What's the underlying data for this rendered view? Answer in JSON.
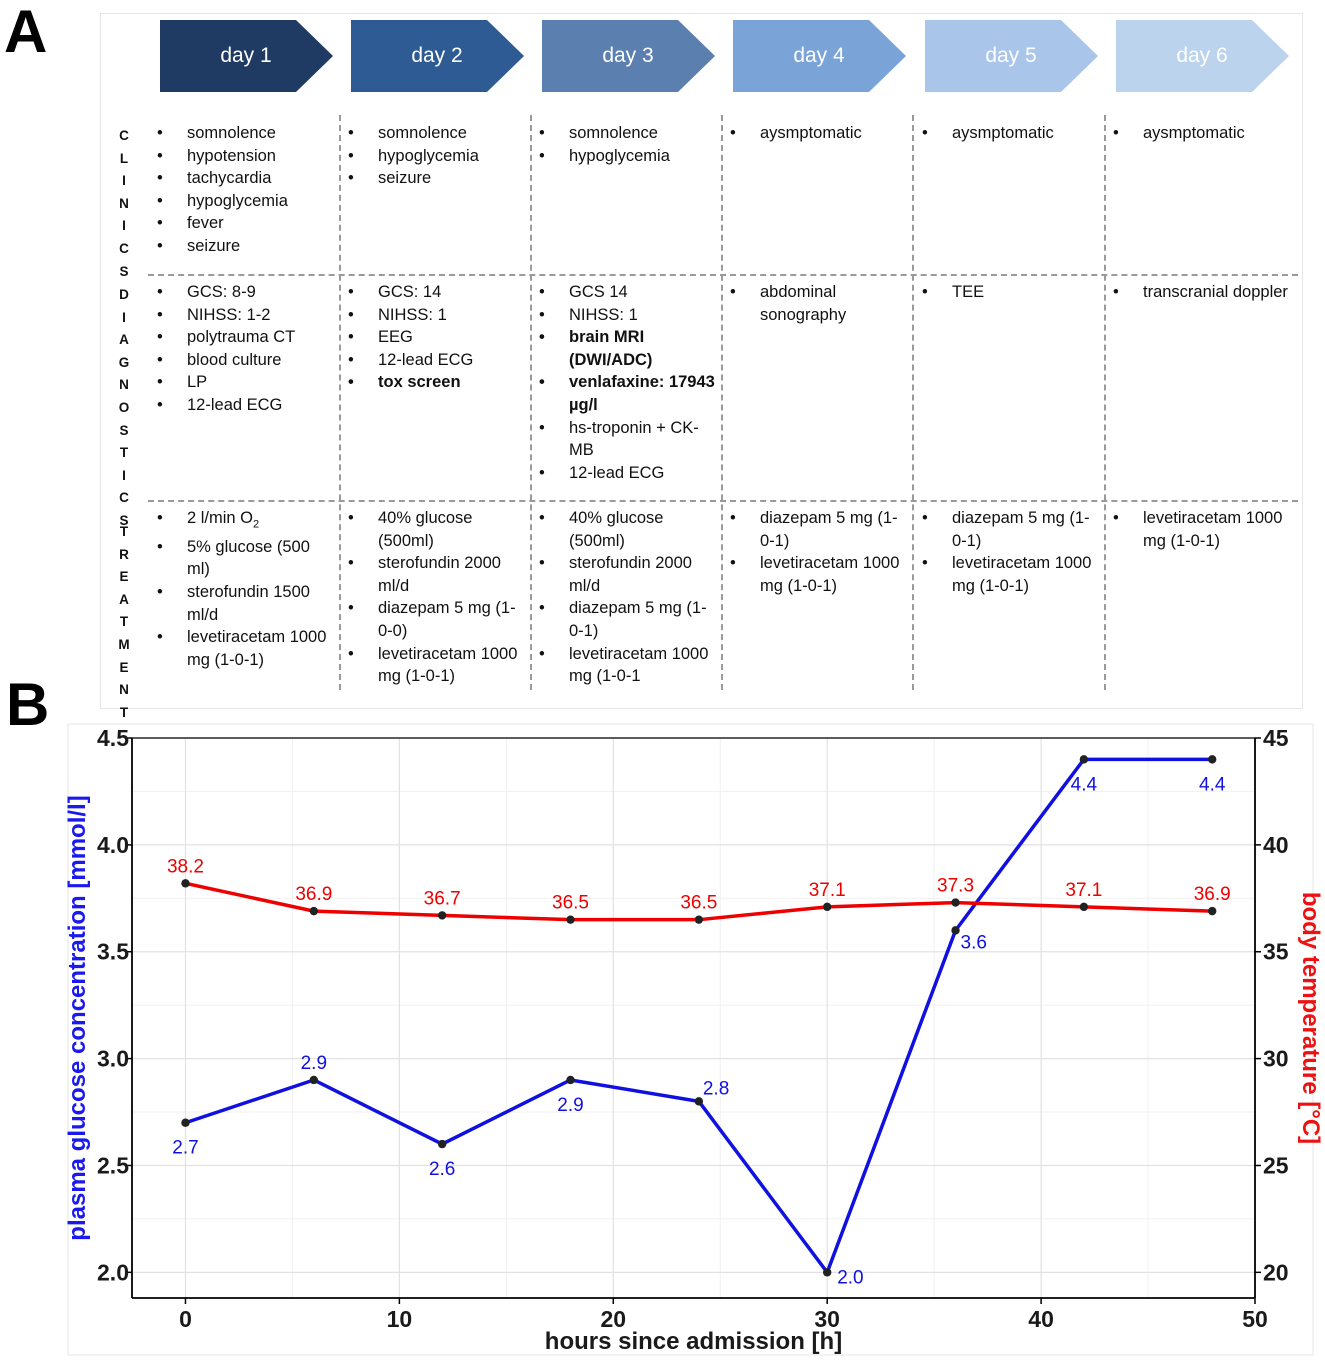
{
  "panel_a": {
    "letter": "A",
    "days": [
      {
        "label": "day 1",
        "color": "#1f3a63"
      },
      {
        "label": "day 2",
        "color": "#2f5b95"
      },
      {
        "label": "day 3",
        "color": "#5b7fae"
      },
      {
        "label": "day 4",
        "color": "#7aa3d8"
      },
      {
        "label": "day 5",
        "color": "#a9c6ea"
      },
      {
        "label": "day 6",
        "color": "#bcd3ee"
      }
    ],
    "row_labels": {
      "clinics": "CLINICS",
      "diagnostics": "DIAGNOSTICS",
      "treatment": "TREATMENT"
    },
    "clinics": [
      [
        {
          "text": "somnolence"
        },
        {
          "text": "hypotension"
        },
        {
          "text": "tachycardia"
        },
        {
          "text": "hypoglycemia"
        },
        {
          "text": "fever"
        },
        {
          "text": "seizure"
        }
      ],
      [
        {
          "text": "somnolence"
        },
        {
          "text": "hypoglycemia"
        },
        {
          "text": "seizure"
        }
      ],
      [
        {
          "text": "somnolence"
        },
        {
          "text": "hypoglycemia"
        }
      ],
      [
        {
          "text": "aysmptomatic"
        }
      ],
      [
        {
          "text": "aysmptomatic"
        }
      ],
      [
        {
          "text": "aysmptomatic"
        }
      ]
    ],
    "diagnostics": [
      [
        {
          "text": "GCS: 8-9"
        },
        {
          "text": "NIHSS: 1-2"
        },
        {
          "text": "polytrauma CT"
        },
        {
          "text": "blood culture"
        },
        {
          "text": "LP"
        },
        {
          "text": "12-lead ECG"
        }
      ],
      [
        {
          "text": "GCS: 14"
        },
        {
          "text": "NIHSS: 1"
        },
        {
          "text": "EEG"
        },
        {
          "text": "12-lead ECG"
        },
        {
          "text": "tox screen",
          "bold": true
        }
      ],
      [
        {
          "text": "GCS 14"
        },
        {
          "text": "NIHSS: 1"
        },
        {
          "text": "brain MRI (DWI/ADC)",
          "bold": true
        },
        {
          "text": "venlafaxine: 17943 µg/l",
          "bold": true
        },
        {
          "text": "hs-troponin + CK-MB"
        },
        {
          "text": "12-lead ECG"
        }
      ],
      [
        {
          "text": "abdominal sonography"
        }
      ],
      [
        {
          "text": "TEE"
        }
      ],
      [
        {
          "text": "transcranial doppler"
        }
      ]
    ],
    "treatment": [
      [
        {
          "text": "2 l/min O",
          "sub": "2"
        },
        {
          "text": "5% glucose (500 ml)"
        },
        {
          "text": "sterofundin 1500 ml/d"
        },
        {
          "text": "levetiracetam 1000 mg (1-0-1)"
        }
      ],
      [
        {
          "text": "40% glucose (500ml)"
        },
        {
          "text": "sterofundin 2000 ml/d"
        },
        {
          "text": "diazepam 5 mg (1-0-0)"
        },
        {
          "text": "levetiracetam 1000 mg (1-0-1)"
        }
      ],
      [
        {
          "text": "40% glucose (500ml)"
        },
        {
          "text": "sterofundin 2000 ml/d"
        },
        {
          "text": "diazepam 5 mg (1-0-1)"
        },
        {
          "text": "levetiracetam 1000 mg (1-0-1"
        }
      ],
      [
        {
          "text": "diazepam 5 mg (1-0-1)"
        },
        {
          "text": "levetiracetam 1000 mg (1-0-1)"
        }
      ],
      [
        {
          "text": "diazepam 5 mg (1-0-1)"
        },
        {
          "text": "levetiracetam 1000 mg (1-0-1)"
        }
      ],
      [
        {
          "text": "levetiracetam 1000 mg (1-0-1)"
        }
      ]
    ]
  },
  "panel_b": {
    "letter": "B"
  },
  "chart_data": {
    "type": "line",
    "xlabel": "hours since admission [h]",
    "ylabel_left": "plasma glucose concentration [mmol/l]",
    "ylabel_right": "body temperature [°C]",
    "xlim": [
      -2.5,
      50
    ],
    "x_ticks": [
      0,
      10,
      20,
      30,
      40,
      50
    ],
    "ylim_left": [
      1.88,
      4.5
    ],
    "y_ticks_left": [
      "2.0",
      "2.5",
      "3.0",
      "3.5",
      "4.0",
      "4.5"
    ],
    "ylim_right": [
      18.8,
      45
    ],
    "y_ticks_right": [
      "20",
      "25",
      "30",
      "35",
      "40",
      "45"
    ],
    "grid": true,
    "series": [
      {
        "name": "plasma glucose",
        "axis": "left",
        "color": "#1010e0",
        "x": [
          0,
          6,
          12,
          18,
          24,
          30,
          36,
          42,
          48
        ],
        "values": [
          2.7,
          2.9,
          2.6,
          2.9,
          2.8,
          2.0,
          3.6,
          4.4,
          4.4
        ],
        "labels": [
          "2.7",
          "2.9",
          "2.6",
          "2.9",
          "2.8",
          "2.0",
          "3.6",
          "4.4",
          "4.4"
        ],
        "label_pos": [
          "below",
          "above",
          "below",
          "below",
          "above-right",
          "right",
          "below-right",
          "below",
          "below"
        ]
      },
      {
        "name": "body temperature",
        "axis": "right",
        "color": "#ee0000",
        "x": [
          0,
          6,
          12,
          18,
          24,
          30,
          36,
          42,
          48
        ],
        "values": [
          38.2,
          36.9,
          36.7,
          36.5,
          36.5,
          37.1,
          37.3,
          37.1,
          36.9
        ],
        "labels": [
          "38.2",
          "36.9",
          "36.7",
          "36.5",
          "36.5",
          "37.1",
          "37.3",
          "37.1",
          "36.9"
        ],
        "label_pos": [
          "above",
          "above",
          "above",
          "above",
          "above",
          "above",
          "above",
          "above",
          "above"
        ]
      }
    ]
  }
}
